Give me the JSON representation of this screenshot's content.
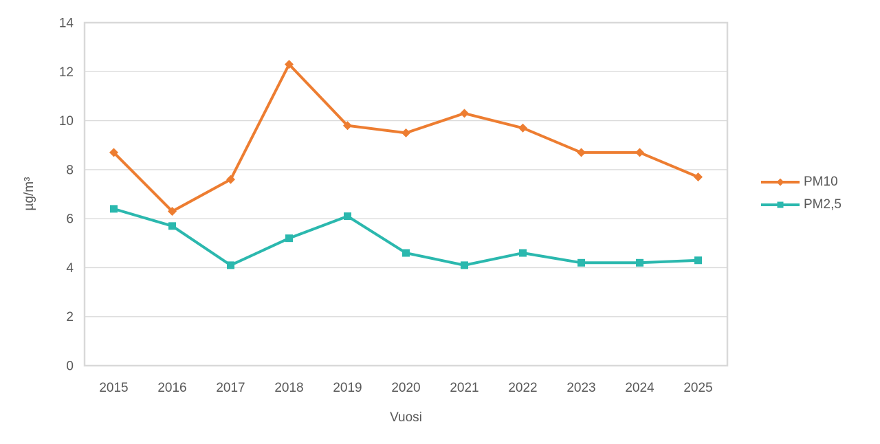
{
  "chart_data": {
    "type": "line",
    "title": "",
    "xlabel": "Vuosi",
    "ylabel": "µg/m³",
    "categories": [
      "2015",
      "2016",
      "2017",
      "2018",
      "2019",
      "2020",
      "2021",
      "2022",
      "2023",
      "2024",
      "2025"
    ],
    "series": [
      {
        "name": "PM10",
        "marker": "diamond",
        "color": "#ED7D31",
        "values": [
          8.7,
          6.3,
          7.6,
          12.3,
          9.8,
          9.5,
          10.3,
          9.7,
          8.7,
          8.7,
          7.7
        ]
      },
      {
        "name": "PM2,5",
        "marker": "square",
        "color": "#2BB8AE",
        "values": [
          6.4,
          5.7,
          4.1,
          5.2,
          6.1,
          4.6,
          4.1,
          4.6,
          4.2,
          4.2,
          4.3
        ]
      }
    ],
    "ylim": [
      0,
      14
    ],
    "yticks": [
      0,
      2,
      4,
      6,
      8,
      10,
      12,
      14
    ],
    "grid": true,
    "legend_position": "right-center"
  },
  "style_colors": {
    "grid": "#D9D9D9",
    "axis_border": "#D9D9D9",
    "tick_text": "#595959",
    "background": "#FFFFFF"
  }
}
